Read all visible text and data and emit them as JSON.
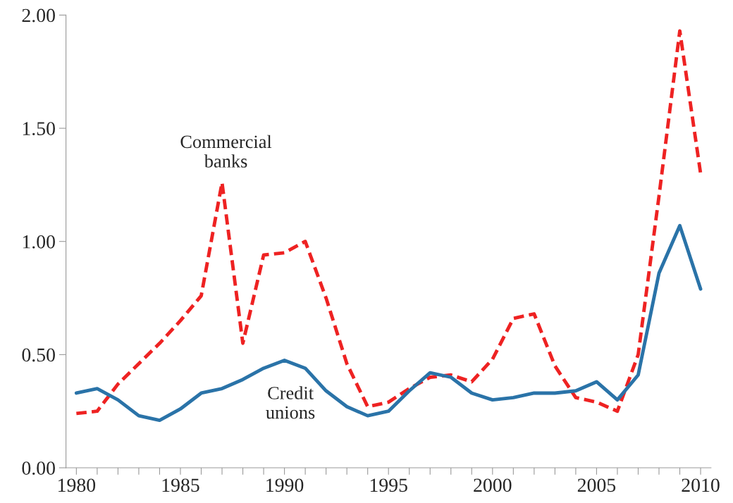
{
  "chart_data": {
    "type": "line",
    "x": [
      1980,
      1981,
      1982,
      1983,
      1984,
      1985,
      1986,
      1987,
      1988,
      1989,
      1990,
      1991,
      1992,
      1993,
      1994,
      1995,
      1996,
      1997,
      1998,
      1999,
      2000,
      2001,
      2002,
      2003,
      2004,
      2005,
      2006,
      2007,
      2008,
      2009,
      2010
    ],
    "series": [
      {
        "color": "#ee2222",
        "line_style": "dashed",
        "values": [
          0.24,
          0.25,
          0.37,
          0.46,
          0.55,
          0.65,
          0.76,
          1.26,
          0.55,
          0.94,
          0.95,
          1.0,
          0.75,
          0.46,
          0.27,
          0.29,
          0.35,
          0.4,
          0.41,
          0.38,
          0.48,
          0.66,
          0.68,
          0.45,
          0.31,
          0.29,
          0.25,
          0.5,
          1.2,
          1.93,
          1.3
        ]
      },
      {
        "color": "#2a73a8",
        "line_style": "solid",
        "values": [
          0.33,
          0.35,
          0.3,
          0.23,
          0.21,
          0.26,
          0.33,
          0.35,
          0.39,
          0.44,
          0.475,
          0.44,
          0.34,
          0.27,
          0.23,
          0.25,
          0.34,
          0.42,
          0.4,
          0.33,
          0.3,
          0.31,
          0.33,
          0.33,
          0.34,
          0.38,
          0.3,
          0.41,
          0.86,
          1.07,
          0.79
        ]
      }
    ],
    "annotations": [
      "Commercial\nbanks",
      "Credit\nunions"
    ],
    "xlim": [
      1979.5,
      2010.5
    ],
    "xticks": [
      1980,
      {
        "value": 1981,
        "label": null
      },
      {
        "value": 1982,
        "label": null
      },
      {
        "value": 1983,
        "label": null
      },
      {
        "value": 1984,
        "label": null
      },
      1985,
      {
        "value": 1986,
        "label": null
      },
      {
        "value": 1987,
        "label": null
      },
      {
        "value": 1988,
        "label": null
      },
      {
        "value": 1989,
        "label": null
      },
      1990,
      {
        "value": 1991,
        "label": null
      },
      {
        "value": 1992,
        "label": null
      },
      {
        "value": 1993,
        "label": null
      },
      {
        "value": 1994,
        "label": null
      },
      1995,
      {
        "value": 1996,
        "label": null
      },
      {
        "value": 1997,
        "label": null
      },
      {
        "value": 1998,
        "label": null
      },
      {
        "value": 1999,
        "label": null
      },
      2000,
      {
        "value": 2001,
        "label": null
      },
      {
        "value": 2002,
        "label": null
      },
      {
        "value": 2003,
        "label": null
      },
      {
        "value": 2004,
        "label": null
      },
      2005,
      {
        "value": 2006,
        "label": null
      },
      {
        "value": 2007,
        "label": null
      },
      {
        "value": 2008,
        "label": null
      },
      {
        "value": 2009,
        "label": null
      },
      2010
    ],
    "ylim": [
      0,
      2
    ],
    "yticks": [
      {
        "value": 0,
        "label": "0.00"
      },
      {
        "value": 0.5,
        "label": "0.50"
      },
      {
        "value": 1,
        "label": "1.00"
      },
      {
        "value": 1.5,
        "label": "1.50"
      },
      {
        "value": 2,
        "label": "2.00"
      }
    ],
    "grid": false,
    "legend": false,
    "marker": "none"
  }
}
